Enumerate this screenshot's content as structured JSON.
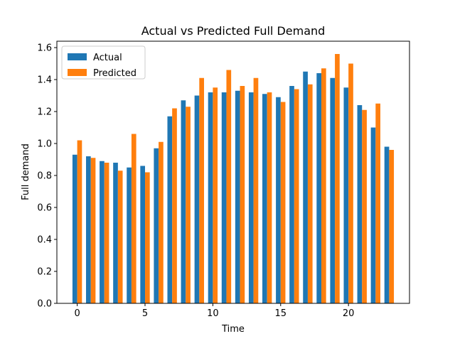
{
  "chart_data": {
    "type": "bar",
    "title": "Actual vs Predicted Full Demand",
    "xlabel": "Time",
    "ylabel": "Full demand",
    "x": [
      0,
      1,
      2,
      3,
      4,
      5,
      6,
      7,
      8,
      9,
      10,
      11,
      12,
      13,
      14,
      15,
      16,
      17,
      18,
      19,
      20,
      21,
      22,
      23
    ],
    "xticks": [
      0,
      5,
      10,
      15,
      20
    ],
    "yticks": [
      0.0,
      0.2,
      0.4,
      0.6,
      0.8,
      1.0,
      1.2,
      1.4,
      1.6
    ],
    "xlim": [
      -1.5,
      24.5
    ],
    "ylim": [
      0,
      1.64
    ],
    "grid": false,
    "legend": "top-left",
    "series": [
      {
        "name": "Actual",
        "color": "#1f77b4",
        "values": [
          0.93,
          0.92,
          0.89,
          0.88,
          0.85,
          0.86,
          0.97,
          1.17,
          1.27,
          1.3,
          1.32,
          1.32,
          1.33,
          1.32,
          1.31,
          1.29,
          1.36,
          1.45,
          1.44,
          1.41,
          1.35,
          1.24,
          1.1,
          0.98
        ]
      },
      {
        "name": "Predicted",
        "color": "#ff7f0e",
        "values": [
          1.02,
          0.91,
          0.88,
          0.83,
          1.06,
          0.82,
          1.01,
          1.22,
          1.23,
          1.41,
          1.35,
          1.46,
          1.36,
          1.41,
          1.32,
          1.26,
          1.34,
          1.37,
          1.47,
          1.56,
          1.5,
          1.21,
          1.25,
          0.96
        ]
      }
    ]
  }
}
